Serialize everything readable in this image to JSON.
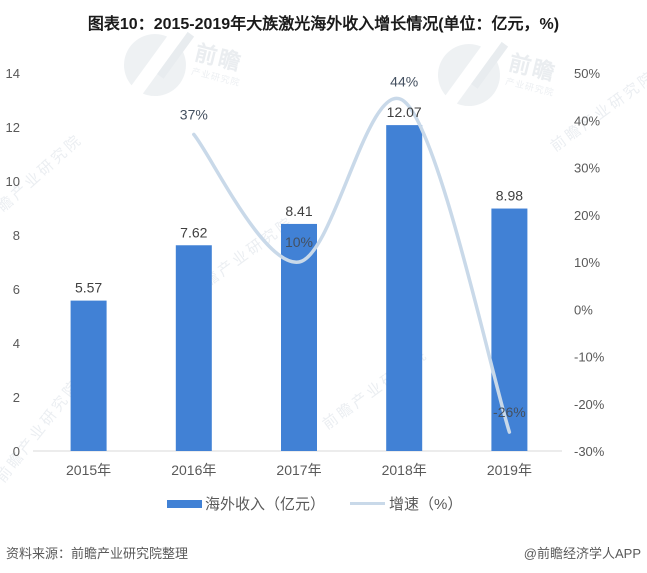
{
  "title": "图表10：2015-2019年大族激光海外收入增长情况(单位：亿元，%)",
  "legend": {
    "bar_label": "海外收入（亿元）",
    "line_label": "增速（%）"
  },
  "footer": {
    "source": "资料来源：前瞻产业研究院整理",
    "credit": "@前瞻经济学人APP"
  },
  "watermark": {
    "brand": "前瞻",
    "sub": "产业研究院",
    "text": "前瞻产业研究院"
  },
  "colors": {
    "bar": "#4181D5",
    "line": "#C9D9E9",
    "value_label": "#404040",
    "pct_label": "#445060",
    "tick_label": "#595959",
    "axis_line": "#D9D9D9",
    "title": "#1A1A1A",
    "footer": "#595959",
    "watermark": "#E7EBEF"
  },
  "chart_data": {
    "type": "bar+line combo",
    "title": "图表10：2015-2019年大族激光海外收入增长情况(单位：亿元，%)",
    "categories": [
      "2015年",
      "2016年",
      "2017年",
      "2018年",
      "2019年"
    ],
    "series": [
      {
        "name": "海外收入（亿元）",
        "type": "bar",
        "axis": "left",
        "values": [
          5.57,
          7.62,
          8.41,
          12.07,
          8.98
        ],
        "labels": [
          "5.57",
          "7.62",
          "8.41",
          "12.07",
          "8.98"
        ]
      },
      {
        "name": "增速（%）",
        "type": "line",
        "axis": "right",
        "values": [
          null,
          37,
          10,
          44,
          -26
        ],
        "labels": [
          "",
          "37%",
          "10%",
          "44%",
          "-26%"
        ]
      }
    ],
    "left_axis": {
      "min": 0,
      "max": 14,
      "step": 2,
      "ticks": [
        "0",
        "2",
        "4",
        "6",
        "8",
        "10",
        "12",
        "14"
      ]
    },
    "right_axis": {
      "min": -30,
      "max": 50,
      "step": 10,
      "ticks": [
        "-30%",
        "-20%",
        "-10%",
        "0%",
        "10%",
        "20%",
        "30%",
        "40%",
        "50%"
      ]
    },
    "grid": false,
    "legend_position": "bottom",
    "smooth_line": true
  }
}
